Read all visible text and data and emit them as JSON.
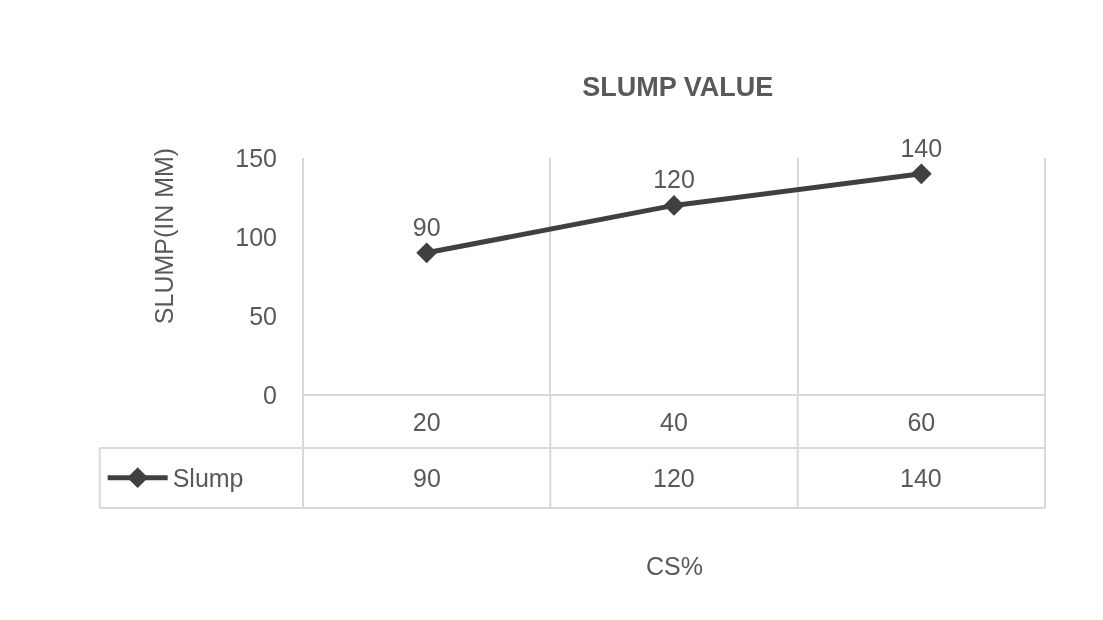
{
  "chart_data": {
    "type": "line",
    "title": "SLUMP VALUE",
    "xlabel": "CS%",
    "ylabel": "SLUMP(IN MM)",
    "categories": [
      "20",
      "40",
      "60"
    ],
    "series": [
      {
        "name": "Slump",
        "color": "#404040",
        "values": [
          90,
          120,
          140
        ]
      }
    ],
    "ylim": [
      0,
      150
    ],
    "yticks": [
      0,
      50,
      100,
      150
    ],
    "grid": "x",
    "legend": "bottom left",
    "marker": "diamond",
    "line_style": "solid",
    "data_labels": true,
    "annotations": [
      "90",
      "120",
      "140"
    ]
  }
}
